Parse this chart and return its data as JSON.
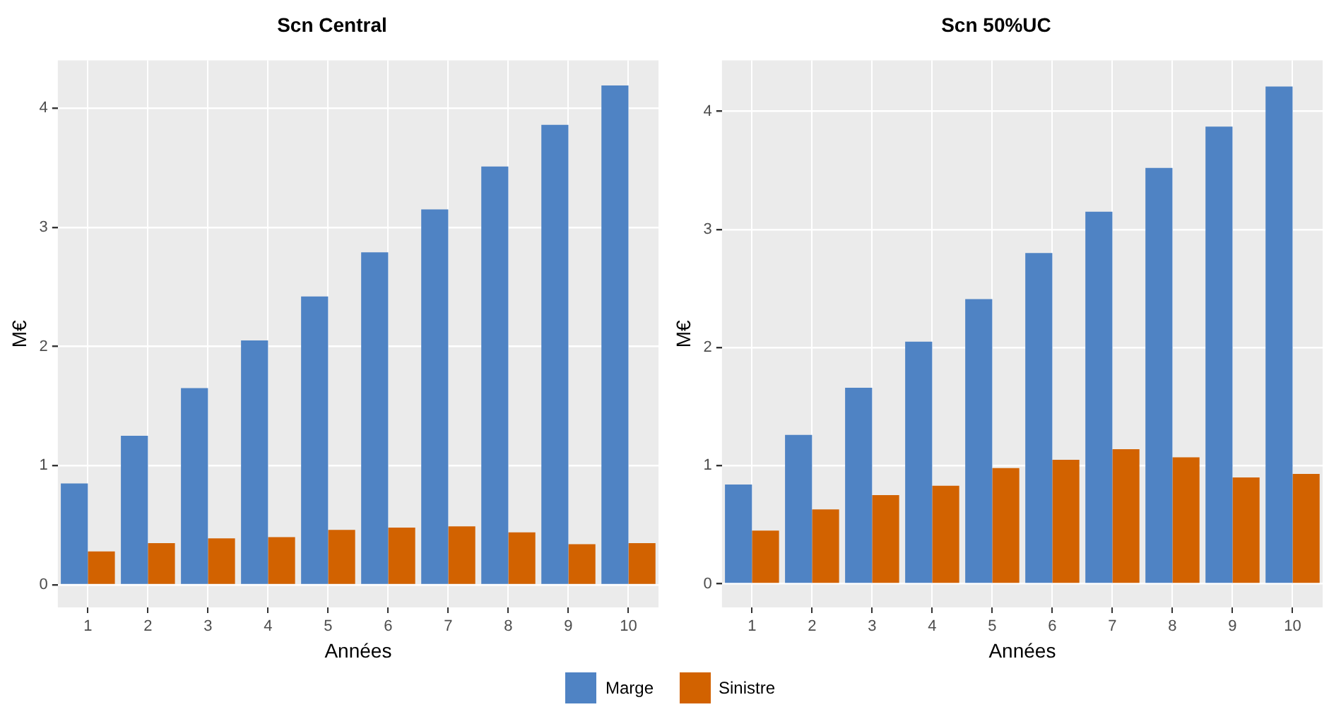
{
  "chart_data": [
    {
      "type": "bar",
      "title": "Scn Central",
      "xlabel": "Années",
      "ylabel": "M€",
      "categories": [
        "1",
        "2",
        "3",
        "4",
        "5",
        "6",
        "7",
        "8",
        "9",
        "10"
      ],
      "ylim": [
        -0.19,
        4.4
      ],
      "yticks": [
        0,
        1,
        2,
        3,
        4
      ],
      "grid": true,
      "legend": "bottom",
      "series": [
        {
          "name": "Marge",
          "color": "#4f83c4",
          "values": [
            0.85,
            1.25,
            1.65,
            2.05,
            2.42,
            2.79,
            3.15,
            3.51,
            3.86,
            4.19
          ]
        },
        {
          "name": "Sinistre",
          "color": "#d26200",
          "values": [
            0.28,
            0.35,
            0.39,
            0.4,
            0.46,
            0.48,
            0.49,
            0.44,
            0.34,
            0.35
          ]
        }
      ]
    },
    {
      "type": "bar",
      "title": "Scn 50%UC",
      "xlabel": "Années",
      "ylabel": "M€",
      "categories": [
        "1",
        "2",
        "3",
        "4",
        "5",
        "6",
        "7",
        "8",
        "9",
        "10"
      ],
      "ylim": [
        -0.2,
        4.43
      ],
      "yticks": [
        0,
        1,
        2,
        3,
        4
      ],
      "grid": true,
      "legend": "bottom",
      "series": [
        {
          "name": "Marge",
          "color": "#4f83c4",
          "values": [
            0.84,
            1.26,
            1.66,
            2.05,
            2.41,
            2.8,
            3.15,
            3.52,
            3.87,
            4.21
          ]
        },
        {
          "name": "Sinistre",
          "color": "#d26200",
          "values": [
            0.45,
            0.63,
            0.75,
            0.83,
            0.98,
            1.05,
            1.14,
            1.07,
            0.9,
            0.93
          ]
        }
      ]
    }
  ]
}
